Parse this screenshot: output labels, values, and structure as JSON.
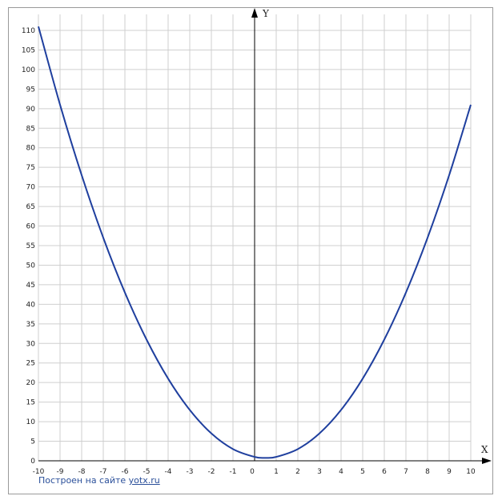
{
  "chart_data": {
    "type": "line",
    "function": "y = x^2 - x + 1",
    "xlabel": "X",
    "ylabel": "Y",
    "xlim": [
      -10,
      10
    ],
    "ylim": [
      0,
      110
    ],
    "x_ticks": [
      -10,
      -9,
      -8,
      -7,
      -6,
      -5,
      -4,
      -3,
      -2,
      -1,
      0,
      1,
      2,
      3,
      4,
      5,
      6,
      7,
      8,
      9,
      10
    ],
    "y_ticks": [
      0,
      5,
      10,
      15,
      20,
      25,
      30,
      35,
      40,
      45,
      50,
      55,
      60,
      65,
      70,
      75,
      80,
      85,
      90,
      95,
      100,
      105,
      110
    ],
    "grid": true,
    "series": [
      {
        "color": "#1f3f9e",
        "x": [
          -10,
          -9,
          -8,
          -7,
          -6,
          -5,
          -4,
          -3,
          -2,
          -1,
          0,
          0.5,
          1,
          2,
          3,
          4,
          5,
          6,
          7,
          8,
          9,
          10
        ],
        "y": [
          111,
          91,
          73,
          57,
          43,
          31,
          21,
          13,
          7,
          3,
          1,
          0.75,
          1,
          3,
          7,
          13,
          21,
          31,
          43,
          57,
          73,
          91
        ]
      }
    ]
  },
  "footer": {
    "credit_text": "Построен на сайте",
    "credit_link": "yotx.ru"
  }
}
